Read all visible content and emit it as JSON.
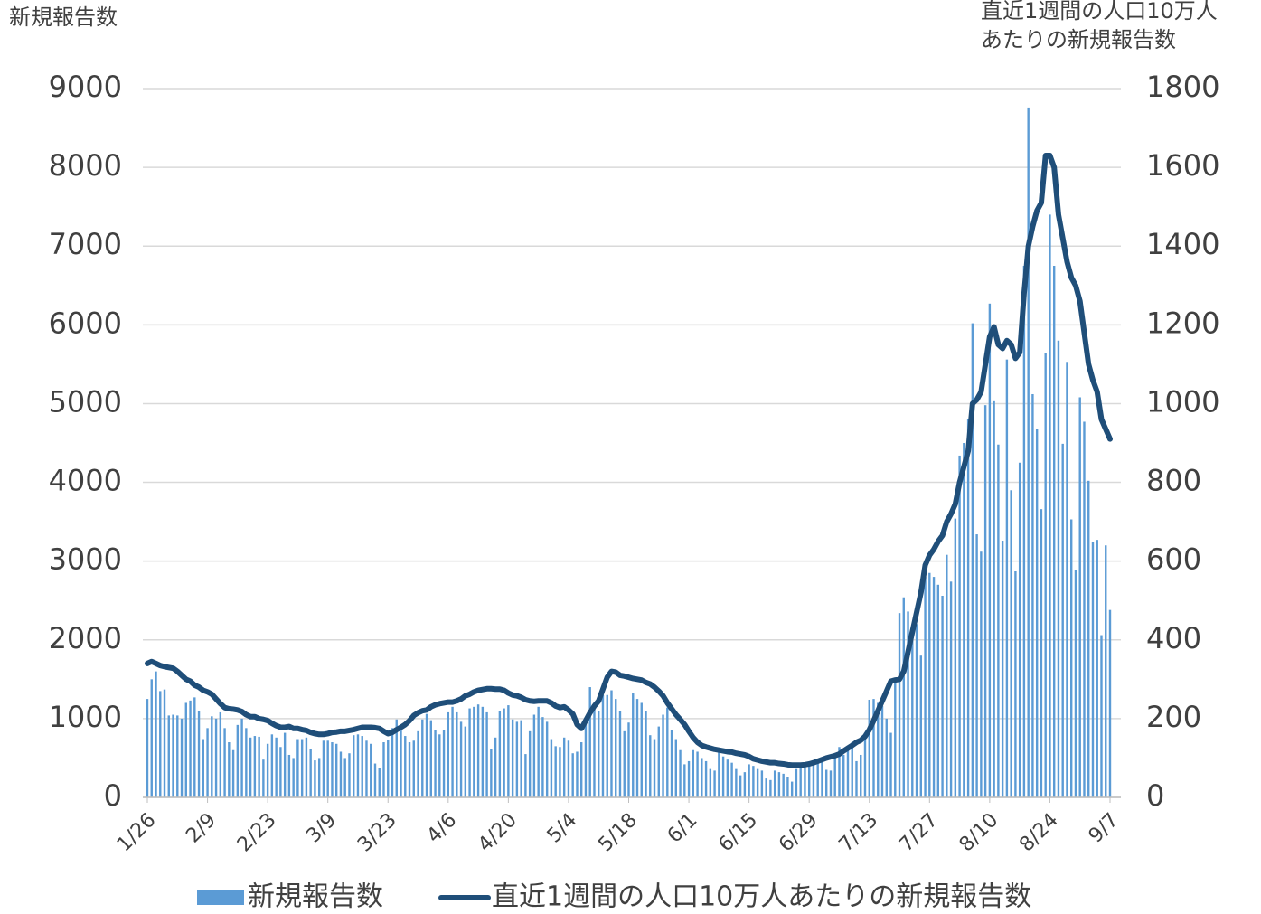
{
  "chart_data": {
    "type": "combo",
    "y_label": "新規報告数",
    "y2_label": [
      "直近1週間の人口10万人",
      "あたりの新規報告数"
    ],
    "categories": [
      "1/26",
      null,
      null,
      null,
      null,
      null,
      null,
      null,
      null,
      null,
      null,
      null,
      null,
      null,
      "2/9",
      null,
      null,
      null,
      null,
      null,
      null,
      null,
      null,
      null,
      null,
      null,
      null,
      null,
      "2/23",
      null,
      null,
      null,
      null,
      null,
      null,
      null,
      null,
      null,
      null,
      null,
      null,
      null,
      "3/9",
      null,
      null,
      null,
      null,
      null,
      null,
      null,
      null,
      null,
      null,
      null,
      null,
      null,
      "3/23",
      null,
      null,
      null,
      null,
      null,
      null,
      null,
      null,
      null,
      null,
      null,
      null,
      null,
      "4/6",
      null,
      null,
      null,
      null,
      null,
      null,
      null,
      null,
      null,
      null,
      null,
      null,
      null,
      "4/20",
      null,
      null,
      null,
      null,
      null,
      null,
      null,
      null,
      null,
      null,
      null,
      null,
      null,
      "5/4",
      null,
      null,
      null,
      null,
      null,
      null,
      null,
      null,
      null,
      null,
      null,
      null,
      null,
      "5/18",
      null,
      null,
      null,
      null,
      null,
      null,
      null,
      null,
      null,
      null,
      null,
      null,
      null,
      "6/1",
      null,
      null,
      null,
      null,
      null,
      null,
      null,
      null,
      null,
      null,
      null,
      null,
      null,
      "6/15",
      null,
      null,
      null,
      null,
      null,
      null,
      null,
      null,
      null,
      null,
      null,
      null,
      null,
      "6/29",
      null,
      null,
      null,
      null,
      null,
      null,
      null,
      null,
      null,
      null,
      null,
      null,
      null,
      "7/13",
      null,
      null,
      null,
      null,
      null,
      null,
      null,
      null,
      null,
      null,
      null,
      null,
      null,
      "7/27",
      null,
      null,
      null,
      null,
      null,
      null,
      null,
      null,
      null,
      null,
      null,
      null,
      null,
      "8/10",
      null,
      null,
      null,
      null,
      null,
      null,
      null,
      null,
      null,
      null,
      null,
      null,
      null,
      "8/24",
      null,
      null,
      null,
      null,
      null,
      null,
      null,
      null,
      null,
      null,
      null,
      null,
      null,
      "9/7"
    ],
    "series": [
      {
        "name": "新規報告数",
        "type": "bar",
        "color": "#5b9bd5",
        "values": [
          1250,
          1500,
          1600,
          1350,
          1370,
          1040,
          1050,
          1040,
          1000,
          1200,
          1230,
          1270,
          1100,
          740,
          880,
          1030,
          1000,
          1080,
          880,
          700,
          600,
          920,
          1000,
          880,
          760,
          780,
          770,
          480,
          680,
          800,
          760,
          640,
          820,
          540,
          500,
          740,
          740,
          760,
          620,
          470,
          500,
          720,
          720,
          700,
          680,
          580,
          500,
          560,
          790,
          800,
          780,
          720,
          680,
          430,
          370,
          700,
          730,
          880,
          990,
          900,
          780,
          700,
          720,
          840,
          990,
          1060,
          980,
          860,
          800,
          860,
          1080,
          1150,
          1080,
          960,
          900,
          1130,
          1150,
          1180,
          1150,
          1080,
          610,
          760,
          1100,
          1130,
          1170,
          990,
          960,
          980,
          550,
          840,
          1050,
          1150,
          1020,
          960,
          740,
          650,
          640,
          760,
          720,
          560,
          580,
          700,
          1000,
          1400,
          1200,
          1100,
          1300,
          1300,
          1360,
          1250,
          1100,
          840,
          950,
          1320,
          1250,
          1200,
          1100,
          790,
          740,
          900,
          1050,
          1140,
          860,
          740,
          600,
          420,
          460,
          600,
          580,
          500,
          460,
          360,
          340,
          620,
          520,
          480,
          440,
          360,
          280,
          320,
          420,
          400,
          360,
          340,
          240,
          220,
          340,
          320,
          300,
          260,
          200,
          360,
          380,
          420,
          400,
          440,
          460,
          480,
          350,
          340,
          560,
          640,
          540,
          600,
          700,
          460,
          540,
          820,
          1240,
          1250,
          1200,
          1160,
          1000,
          820,
          1480,
          2340,
          2540,
          2360,
          2040,
          2200,
          1800,
          2800,
          2850,
          2800,
          2700,
          2560,
          3080,
          2740,
          3540,
          4340,
          4500,
          4800,
          6020,
          3340,
          3120,
          4980,
          6270,
          5030,
          4480,
          3260,
          5560,
          3900,
          2870,
          4250,
          6750,
          8760,
          5120,
          4680,
          3660,
          5640,
          7400,
          6750,
          5800,
          4490,
          5530,
          3530,
          2890,
          5080,
          4770,
          4020,
          3240,
          3270,
          2060,
          3200,
          2380
        ]
      },
      {
        "name": "直近1週間の人口10万人あたりの新規報告数",
        "type": "line",
        "axis": "y2",
        "color": "#1f4e79",
        "values": [
          340,
          345,
          340,
          335,
          332,
          330,
          328,
          320,
          310,
          300,
          295,
          285,
          280,
          272,
          268,
          262,
          250,
          238,
          228,
          225,
          224,
          222,
          218,
          210,
          205,
          205,
          200,
          198,
          195,
          188,
          182,
          178,
          178,
          180,
          175,
          175,
          172,
          170,
          165,
          162,
          160,
          160,
          162,
          165,
          166,
          168,
          168,
          170,
          172,
          175,
          178,
          178,
          178,
          177,
          175,
          168,
          162,
          165,
          172,
          178,
          185,
          195,
          208,
          215,
          220,
          222,
          230,
          235,
          238,
          240,
          242,
          242,
          245,
          250,
          258,
          262,
          268,
          272,
          274,
          276,
          276,
          275,
          275,
          272,
          265,
          260,
          258,
          254,
          248,
          245,
          244,
          245,
          245,
          245,
          240,
          232,
          228,
          230,
          222,
          212,
          185,
          175,
          195,
          215,
          232,
          245,
          275,
          305,
          320,
          318,
          310,
          308,
          305,
          302,
          300,
          298,
          292,
          288,
          280,
          270,
          258,
          240,
          225,
          210,
          198,
          185,
          168,
          152,
          140,
          132,
          128,
          125,
          122,
          120,
          118,
          116,
          115,
          112,
          110,
          108,
          104,
          98,
          95,
          92,
          90,
          88,
          88,
          86,
          85,
          83,
          82,
          82,
          82,
          83,
          85,
          88,
          92,
          96,
          100,
          103,
          106,
          110,
          118,
          125,
          132,
          140,
          145,
          155,
          172,
          195,
          220,
          245,
          270,
          295,
          298,
          300,
          320,
          370,
          420,
          470,
          520,
          590,
          615,
          630,
          650,
          665,
          700,
          720,
          745,
          800,
          840,
          880,
          1000,
          1010,
          1030,
          1100,
          1170,
          1195,
          1150,
          1140,
          1160,
          1150,
          1115,
          1130,
          1280,
          1400,
          1450,
          1490,
          1510,
          1630,
          1630,
          1600,
          1480,
          1420,
          1360,
          1320,
          1300,
          1260,
          1180,
          1100,
          1060,
          1030,
          960,
          935,
          910
        ]
      }
    ],
    "ylim": [
      0,
      9000
    ],
    "yticks": [
      0,
      1000,
      2000,
      3000,
      4000,
      5000,
      6000,
      7000,
      8000,
      9000
    ],
    "y2lim": [
      0,
      1800
    ],
    "y2ticks": [
      0,
      200,
      400,
      600,
      800,
      1000,
      1200,
      1400,
      1600,
      1800
    ],
    "grid": true,
    "legend": "bottom"
  }
}
